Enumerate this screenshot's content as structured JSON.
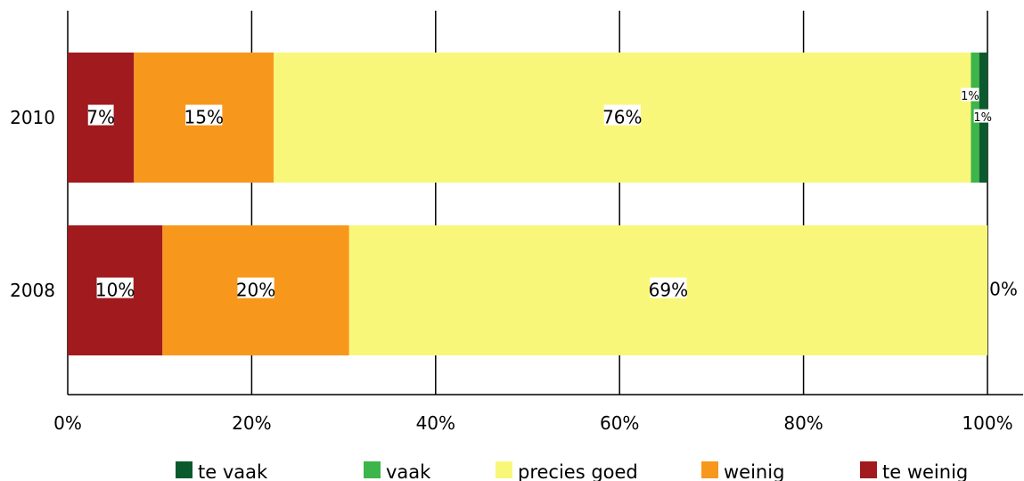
{
  "chart_data": {
    "type": "bar",
    "orientation": "horizontal",
    "stacked": "percent",
    "categories": [
      "2010",
      "2008"
    ],
    "series": [
      {
        "name": "te weinig",
        "color": "#a01a1e",
        "values": [
          7.2,
          10.3
        ],
        "labels": [
          "7%",
          "10%"
        ]
      },
      {
        "name": "weinig",
        "color": "#f7981d",
        "values": [
          15.2,
          20.3
        ],
        "labels": [
          "15%",
          "20%"
        ]
      },
      {
        "name": "precies goed",
        "color": "#f9f77a",
        "values": [
          75.8,
          69.4
        ],
        "labels": [
          "76%",
          "69%"
        ]
      },
      {
        "name": "vaak",
        "color": "#3cb54a",
        "values": [
          0.9,
          0.0
        ],
        "labels": [
          "1%",
          ""
        ]
      },
      {
        "name": "te vaak",
        "color": "#0b5a2e",
        "values": [
          0.9,
          0.0
        ],
        "labels": [
          "1%",
          "0%"
        ]
      }
    ],
    "xlim": [
      0,
      100
    ],
    "x_ticks": [
      "0%",
      "20%",
      "40%",
      "60%",
      "80%",
      "100%"
    ],
    "grid": true,
    "legend_position": "bottom",
    "legend_order": [
      "te vaak",
      "vaak",
      "precies goed",
      "weinig",
      "te weinig"
    ]
  }
}
